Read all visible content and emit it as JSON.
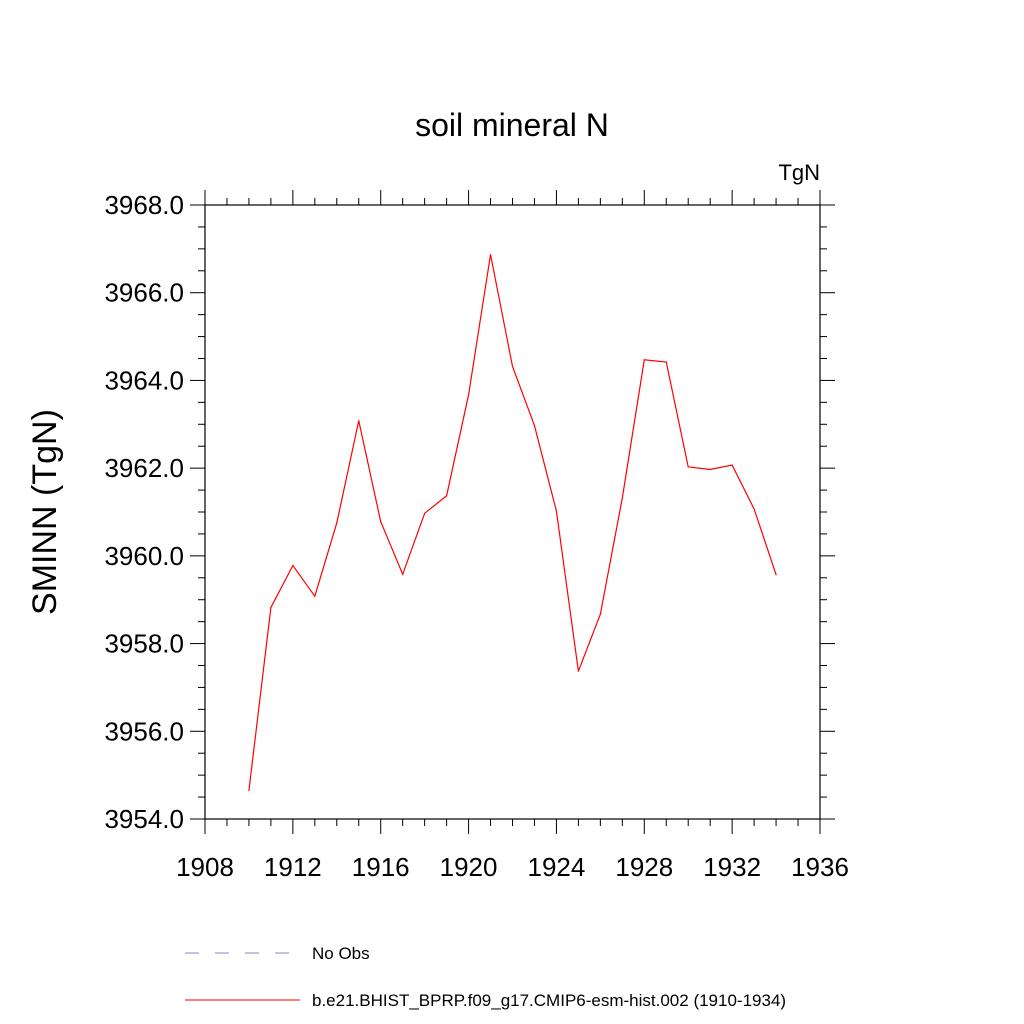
{
  "chart_data": {
    "type": "line",
    "title": "soil mineral N",
    "units_label": "TgN",
    "xlabel": "",
    "ylabel": "SMINN  (TgN)",
    "xlim": [
      1908,
      1936
    ],
    "ylim": [
      3954.0,
      3968.0
    ],
    "x_ticks": [
      1908,
      1912,
      1916,
      1920,
      1924,
      1928,
      1932,
      1936
    ],
    "x_tick_labels": [
      "1908",
      "1912",
      "1916",
      "1920",
      "1924",
      "1928",
      "1932",
      "1936"
    ],
    "y_ticks": [
      3954.0,
      3956.0,
      3958.0,
      3960.0,
      3962.0,
      3964.0,
      3966.0,
      3968.0
    ],
    "y_tick_labels": [
      "3954.0",
      "3956.0",
      "3958.0",
      "3960.0",
      "3962.0",
      "3964.0",
      "3966.0",
      "3968.0"
    ],
    "grid": false,
    "legend_position": "bottom",
    "series": [
      {
        "name": "b.e21.BHIST_BPRP.f09_g17.CMIP6-esm-hist.002 (1910-1934)",
        "color": "#ff0000",
        "dash": "solid",
        "x": [
          1910,
          1911,
          1912,
          1913,
          1914,
          1915,
          1916,
          1917,
          1918,
          1919,
          1920,
          1921,
          1922,
          1923,
          1924,
          1925,
          1926,
          1927,
          1928,
          1929,
          1930,
          1931,
          1932,
          1933,
          1934
        ],
        "values": [
          3954.65,
          3958.82,
          3959.78,
          3959.08,
          3960.75,
          3963.08,
          3960.78,
          3959.58,
          3960.97,
          3961.37,
          3963.67,
          3966.87,
          3964.32,
          3962.97,
          3961.02,
          3957.37,
          3958.67,
          3961.32,
          3964.47,
          3964.42,
          3962.03,
          3961.97,
          3962.07,
          3961.07,
          3959.57
        ]
      }
    ],
    "legend": [
      {
        "label": "No Obs",
        "color": "#8a84c8",
        "dash": "dashed"
      },
      {
        "label": "b.e21.BHIST_BPRP.f09_g17.CMIP6-esm-hist.002 (1910-1934)",
        "color": "#ff0000",
        "dash": "solid"
      }
    ]
  }
}
